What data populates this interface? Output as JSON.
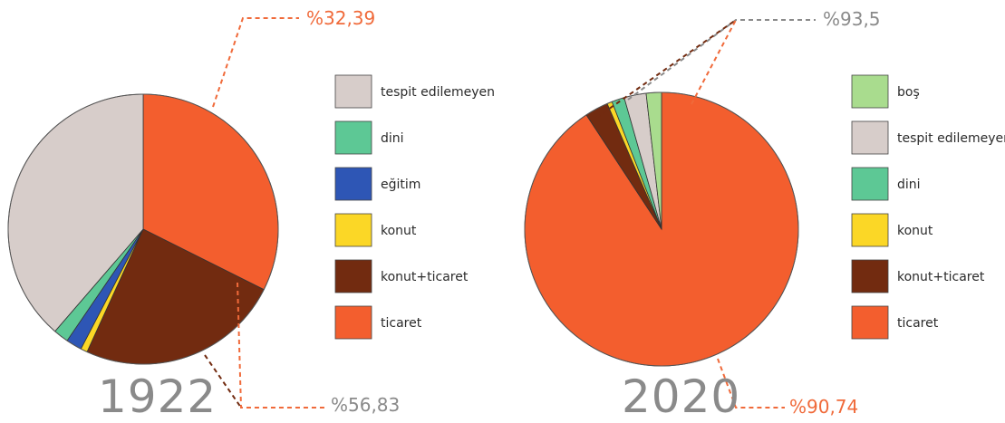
{
  "colors": {
    "bos": "#a9dc8e",
    "tespit": "#d7cdca",
    "dini": "#5dc895",
    "egitim": "#2e56b5",
    "konut": "#fbd726",
    "konut_ticaret": "#722b10",
    "ticaret": "#f35e2e",
    "orange_text": "#f06a3a",
    "gray_text": "#8a8a8a"
  },
  "chart_data": [
    {
      "type": "pie",
      "title": "1922",
      "slices": [
        {
          "label": "ticaret",
          "value": 32.39,
          "color": "#f35e2e"
        },
        {
          "label": "konut+ticaret",
          "value": 24.44,
          "color": "#722b10"
        },
        {
          "label": "konut",
          "value": 0.8,
          "color": "#fbd726"
        },
        {
          "label": "eğitim",
          "value": 1.9,
          "color": "#2e56b5"
        },
        {
          "label": "dini",
          "value": 1.8,
          "color": "#5dc895"
        },
        {
          "label": "tespit edilemeyen",
          "value": 38.67,
          "color": "#d7cdca"
        }
      ],
      "legend": [
        "tespit edilemeyen",
        "dini",
        "eğitim",
        "konut",
        "konut+ticaret",
        "ticaret"
      ],
      "callouts": [
        "%32,39",
        "%56,83"
      ]
    },
    {
      "type": "pie",
      "title": "2020",
      "slices": [
        {
          "label": "ticaret",
          "value": 90.74,
          "color": "#f35e2e"
        },
        {
          "label": "konut+ticaret",
          "value": 2.76,
          "color": "#722b10"
        },
        {
          "label": "konut",
          "value": 0.6,
          "color": "#fbd726"
        },
        {
          "label": "dini",
          "value": 1.5,
          "color": "#5dc895"
        },
        {
          "label": "tespit edilemeyen",
          "value": 2.6,
          "color": "#d7cdca"
        },
        {
          "label": "boş",
          "value": 1.8,
          "color": "#a9dc8e"
        }
      ],
      "legend": [
        "boş",
        "tespit edilemeyen",
        "dini",
        "konut",
        "konut+ticaret",
        "ticaret"
      ],
      "callouts": [
        "%93,5",
        "%90,74"
      ]
    }
  ]
}
